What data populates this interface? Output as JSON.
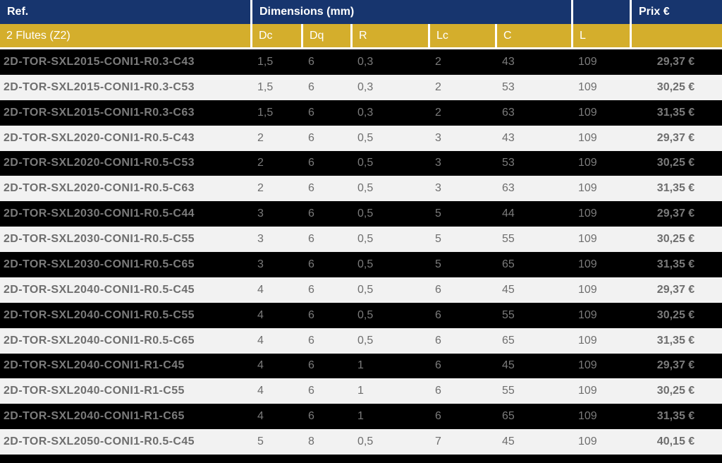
{
  "table": {
    "header": {
      "ref_label": "Ref.",
      "dimensions_label": "Dimensions (mm)",
      "price_label": "Prix €"
    },
    "subheader": {
      "flutes_label": "2 Flutes (Z2)",
      "columns": [
        "Dc",
        "Dq",
        "R",
        "Lc",
        "C",
        "L"
      ]
    },
    "rows": [
      {
        "ref": "2D-TOR-SXL2015-CONI1-R0.3-C43",
        "dc": "1,5",
        "dq": "6",
        "r": "0,3",
        "lc": "2",
        "c": "43",
        "l": "109",
        "price": "29,37 €"
      },
      {
        "ref": "2D-TOR-SXL2015-CONI1-R0.3-C53",
        "dc": "1,5",
        "dq": "6",
        "r": "0,3",
        "lc": "2",
        "c": "53",
        "l": "109",
        "price": "30,25 €"
      },
      {
        "ref": "2D-TOR-SXL2015-CONI1-R0.3-C63",
        "dc": "1,5",
        "dq": "6",
        "r": "0,3",
        "lc": "2",
        "c": "63",
        "l": "109",
        "price": "31,35 €"
      },
      {
        "ref": "2D-TOR-SXL2020-CONI1-R0.5-C43",
        "dc": "2",
        "dq": "6",
        "r": "0,5",
        "lc": "3",
        "c": "43",
        "l": "109",
        "price": "29,37 €"
      },
      {
        "ref": "2D-TOR-SXL2020-CONI1-R0.5-C53",
        "dc": "2",
        "dq": "6",
        "r": "0,5",
        "lc": "3",
        "c": "53",
        "l": "109",
        "price": "30,25 €"
      },
      {
        "ref": "2D-TOR-SXL2020-CONI1-R0.5-C63",
        "dc": "2",
        "dq": "6",
        "r": "0,5",
        "lc": "3",
        "c": "63",
        "l": "109",
        "price": "31,35 €"
      },
      {
        "ref": "2D-TOR-SXL2030-CONI1-R0.5-C44",
        "dc": "3",
        "dq": "6",
        "r": "0,5",
        "lc": "5",
        "c": "44",
        "l": "109",
        "price": "29,37 €"
      },
      {
        "ref": "2D-TOR-SXL2030-CONI1-R0.5-C55",
        "dc": "3",
        "dq": "6",
        "r": "0,5",
        "lc": "5",
        "c": "55",
        "l": "109",
        "price": "30,25 €"
      },
      {
        "ref": "2D-TOR-SXL2030-CONI1-R0.5-C65",
        "dc": "3",
        "dq": "6",
        "r": "0,5",
        "lc": "5",
        "c": "65",
        "l": "109",
        "price": "31,35 €"
      },
      {
        "ref": "2D-TOR-SXL2040-CONI1-R0.5-C45",
        "dc": "4",
        "dq": "6",
        "r": "0,5",
        "lc": "6",
        "c": "45",
        "l": "109",
        "price": "29,37 €"
      },
      {
        "ref": "2D-TOR-SXL2040-CONI1-R0.5-C55",
        "dc": "4",
        "dq": "6",
        "r": "0,5",
        "lc": "6",
        "c": "55",
        "l": "109",
        "price": "30,25 €"
      },
      {
        "ref": "2D-TOR-SXL2040-CONI1-R0.5-C65",
        "dc": "4",
        "dq": "6",
        "r": "0,5",
        "lc": "6",
        "c": "65",
        "l": "109",
        "price": "31,35 €"
      },
      {
        "ref": "2D-TOR-SXL2040-CONI1-R1-C45",
        "dc": "4",
        "dq": "6",
        "r": "1",
        "lc": "6",
        "c": "45",
        "l": "109",
        "price": "29,37 €"
      },
      {
        "ref": "2D-TOR-SXL2040-CONI1-R1-C55",
        "dc": "4",
        "dq": "6",
        "r": "1",
        "lc": "6",
        "c": "55",
        "l": "109",
        "price": "30,25 €"
      },
      {
        "ref": "2D-TOR-SXL2040-CONI1-R1-C65",
        "dc": "4",
        "dq": "6",
        "r": "1",
        "lc": "6",
        "c": "65",
        "l": "109",
        "price": "31,35 €"
      },
      {
        "ref": "2D-TOR-SXL2050-CONI1-R0.5-C45",
        "dc": "5",
        "dq": "8",
        "r": "0,5",
        "lc": "7",
        "c": "45",
        "l": "109",
        "price": "40,15 €"
      }
    ]
  },
  "colors": {
    "header_blue": "#17356e",
    "subheader_gold": "#d4ae2c",
    "dark_row_bg": "#000000",
    "light_row_bg": "#f2f2f2",
    "dark_row_text": "#7b7b7b",
    "light_row_text": "#6e6e6e",
    "header_text": "#ffffff",
    "separator": "#ffffff"
  }
}
